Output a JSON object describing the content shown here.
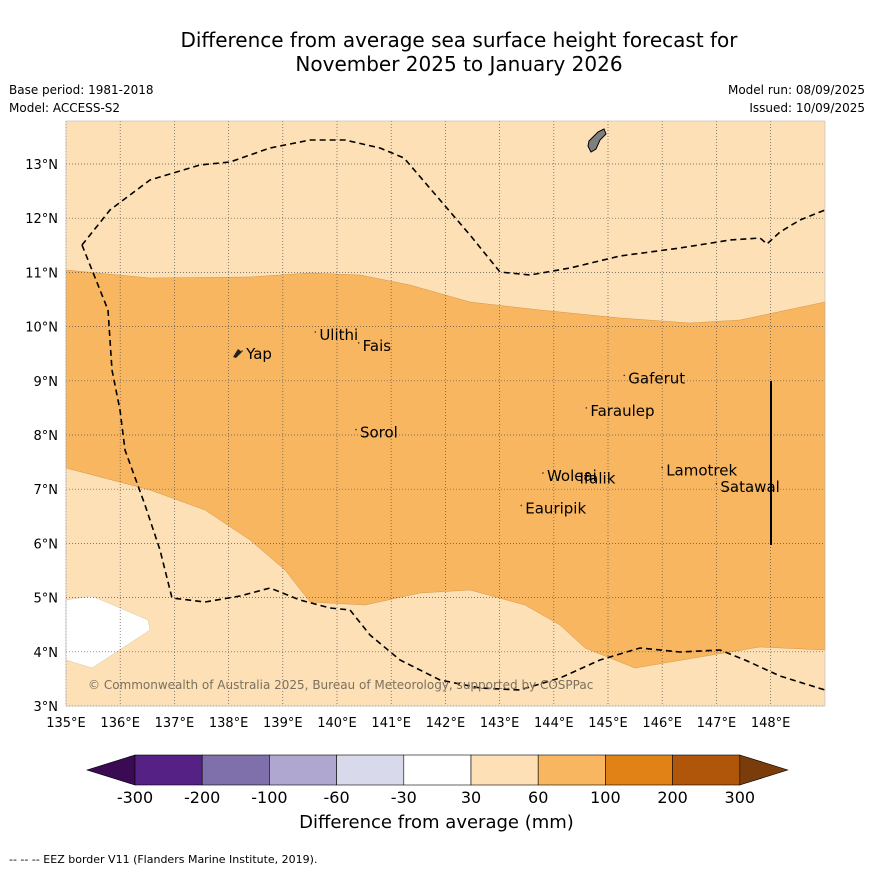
{
  "header": {
    "title_line1": "Difference from average sea surface height forecast for",
    "title_line2": "November 2025 to January 2026",
    "base_period": "Base period: 1981-2018",
    "model": "Model: ACCESS-S2",
    "model_run": "Model run: 08/09/2025",
    "issued": "Issued: 10/09/2025"
  },
  "map": {
    "lon_range": [
      135,
      149
    ],
    "lat_range": [
      3,
      13.8
    ],
    "lon_ticks": [
      "135°E",
      "136°E",
      "137°E",
      "138°E",
      "139°E",
      "140°E",
      "141°E",
      "142°E",
      "143°E",
      "144°E",
      "145°E",
      "146°E",
      "147°E",
      "148°E"
    ],
    "lat_ticks": [
      "3°N",
      "4°N",
      "5°N",
      "6°N",
      "7°N",
      "8°N",
      "9°N",
      "10°N",
      "11°N",
      "12°N",
      "13°N"
    ],
    "places": [
      {
        "name": "Yap",
        "lon": 138.25,
        "lat": 9.55
      },
      {
        "name": "Ulithi",
        "lon": 139.6,
        "lat": 9.9
      },
      {
        "name": "Fais",
        "lon": 140.4,
        "lat": 9.7
      },
      {
        "name": "Sorol",
        "lon": 140.35,
        "lat": 8.1
      },
      {
        "name": "Gaferut",
        "lon": 145.3,
        "lat": 9.1
      },
      {
        "name": "Faraulep",
        "lon": 144.6,
        "lat": 8.5
      },
      {
        "name": "Woleai",
        "lon": 143.8,
        "lat": 7.3
      },
      {
        "name": "Ifalik",
        "lon": 144.4,
        "lat": 7.25
      },
      {
        "name": "Lamotrek",
        "lon": 146.0,
        "lat": 7.4
      },
      {
        "name": "Satawal",
        "lon": 147.0,
        "lat": 7.1
      },
      {
        "name": "Eauripik",
        "lon": 143.4,
        "lat": 6.7
      }
    ],
    "copyright": "© Commonwealth of Australia 2025, Bureau of Meteorology, supported by COSPPac",
    "colors": {
      "light_orange": "#fde0b5",
      "mid_orange": "#f8b660",
      "white": "#ffffff",
      "land": "#7f7f7f"
    }
  },
  "colorbar": {
    "ticks": [
      "-300",
      "-200",
      "-100",
      "-60",
      "-30",
      "30",
      "60",
      "100",
      "200",
      "300"
    ],
    "colors": [
      "#3a0a55",
      "#552185",
      "#7f6faa",
      "#afa7d0",
      "#d9d9ec",
      "#ffffff",
      "#fde0b5",
      "#f8b660",
      "#e08216",
      "#b0560a",
      "#7a3c0a"
    ],
    "title": "Difference from average (mm)"
  },
  "footer": {
    "eez_note": "--  --  -- EEZ border V11 (Flanders Marine Institute, 2019)."
  }
}
